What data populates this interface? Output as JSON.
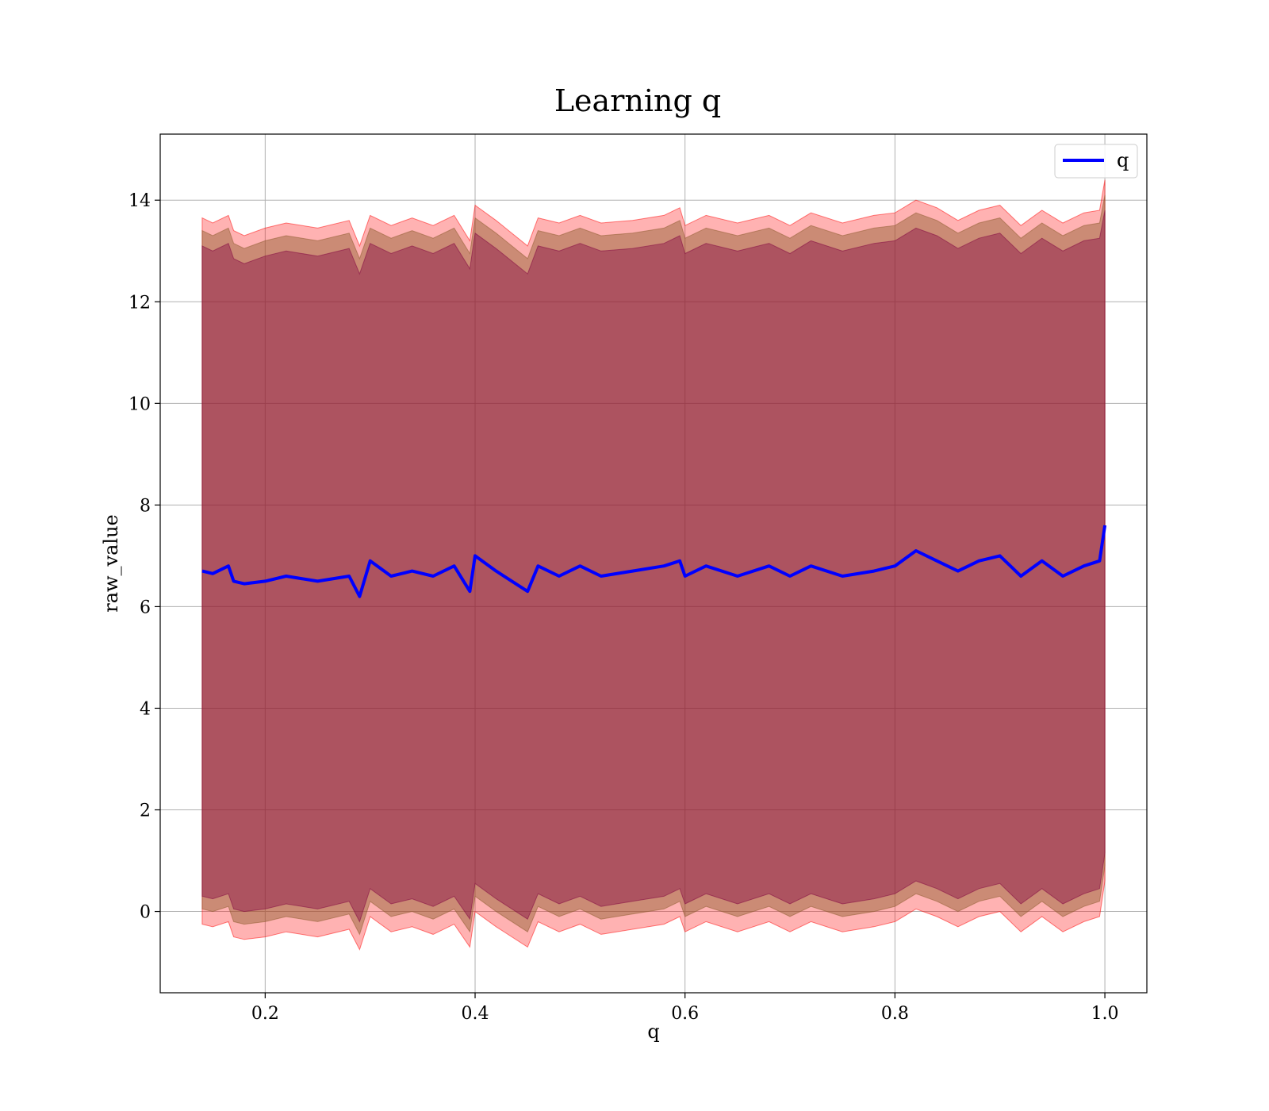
{
  "chart_data": {
    "type": "line",
    "title": "Learning q",
    "xlabel": "q",
    "ylabel": "raw_value",
    "xlim": [
      0.1,
      1.04
    ],
    "ylim": [
      -1.6,
      15.3
    ],
    "xticks": [
      0.2,
      0.4,
      0.6,
      0.8,
      1.0
    ],
    "xtick_labels": [
      "0.2",
      "0.4",
      "0.6",
      "0.8",
      "1.0"
    ],
    "yticks": [
      0,
      2,
      4,
      6,
      8,
      10,
      12,
      14
    ],
    "ytick_labels": [
      "0",
      "2",
      "4",
      "6",
      "8",
      "10",
      "12",
      "14"
    ],
    "grid": true,
    "legend": {
      "position": "top-right",
      "entries": [
        {
          "label": "q",
          "color": "#0000ff"
        }
      ]
    },
    "series": [
      {
        "name": "q",
        "color": "#0000ff",
        "x": [
          0.14,
          0.15,
          0.165,
          0.17,
          0.18,
          0.2,
          0.22,
          0.25,
          0.28,
          0.29,
          0.3,
          0.32,
          0.34,
          0.36,
          0.38,
          0.395,
          0.4,
          0.42,
          0.45,
          0.46,
          0.48,
          0.5,
          0.52,
          0.55,
          0.58,
          0.595,
          0.6,
          0.62,
          0.65,
          0.68,
          0.7,
          0.72,
          0.75,
          0.78,
          0.8,
          0.82,
          0.84,
          0.86,
          0.88,
          0.9,
          0.92,
          0.94,
          0.96,
          0.98,
          0.995,
          1.0
        ],
        "values": [
          6.7,
          6.65,
          6.8,
          6.5,
          6.45,
          6.5,
          6.6,
          6.5,
          6.6,
          6.2,
          6.9,
          6.6,
          6.7,
          6.6,
          6.8,
          6.3,
          7.0,
          6.7,
          6.3,
          6.8,
          6.6,
          6.8,
          6.6,
          6.7,
          6.8,
          6.9,
          6.6,
          6.8,
          6.6,
          6.8,
          6.6,
          6.8,
          6.6,
          6.7,
          6.8,
          7.1,
          6.9,
          6.7,
          6.9,
          7.0,
          6.6,
          6.9,
          6.6,
          6.8,
          6.9,
          7.6
        ]
      }
    ],
    "bands": [
      {
        "name": "outer",
        "color": "#ff0000",
        "opacity": 0.3,
        "upper": [
          13.65,
          13.55,
          13.7,
          13.4,
          13.3,
          13.45,
          13.55,
          13.45,
          13.6,
          13.1,
          13.7,
          13.5,
          13.65,
          13.5,
          13.7,
          13.2,
          13.9,
          13.6,
          13.1,
          13.65,
          13.55,
          13.7,
          13.55,
          13.6,
          13.7,
          13.85,
          13.5,
          13.7,
          13.55,
          13.7,
          13.5,
          13.75,
          13.55,
          13.7,
          13.75,
          14.0,
          13.85,
          13.6,
          13.8,
          13.9,
          13.5,
          13.8,
          13.55,
          13.75,
          13.8,
          14.4
        ],
        "lower": [
          -0.25,
          -0.3,
          -0.2,
          -0.5,
          -0.55,
          -0.5,
          -0.4,
          -0.5,
          -0.35,
          -0.75,
          -0.1,
          -0.4,
          -0.3,
          -0.45,
          -0.25,
          -0.7,
          0.0,
          -0.3,
          -0.7,
          -0.2,
          -0.4,
          -0.25,
          -0.45,
          -0.35,
          -0.25,
          -0.1,
          -0.4,
          -0.2,
          -0.4,
          -0.2,
          -0.4,
          -0.2,
          -0.4,
          -0.3,
          -0.2,
          0.05,
          -0.1,
          -0.3,
          -0.1,
          0.0,
          -0.4,
          -0.1,
          -0.4,
          -0.2,
          -0.1,
          0.6
        ]
      },
      {
        "name": "middle",
        "color": "#8b5a2b",
        "opacity": 0.45,
        "upper": [
          13.4,
          13.3,
          13.45,
          13.15,
          13.05,
          13.2,
          13.3,
          13.2,
          13.35,
          12.85,
          13.45,
          13.25,
          13.4,
          13.25,
          13.45,
          12.95,
          13.65,
          13.35,
          12.85,
          13.4,
          13.3,
          13.45,
          13.3,
          13.35,
          13.45,
          13.6,
          13.25,
          13.45,
          13.3,
          13.45,
          13.25,
          13.5,
          13.3,
          13.45,
          13.5,
          13.75,
          13.6,
          13.35,
          13.55,
          13.65,
          13.25,
          13.55,
          13.3,
          13.5,
          13.55,
          14.1
        ],
        "lower": [
          0.05,
          0.0,
          0.1,
          -0.2,
          -0.25,
          -0.2,
          -0.1,
          -0.2,
          -0.05,
          -0.45,
          0.2,
          -0.1,
          0.0,
          -0.15,
          0.05,
          -0.4,
          0.3,
          0.0,
          -0.4,
          0.1,
          -0.1,
          0.05,
          -0.15,
          -0.05,
          0.05,
          0.2,
          -0.1,
          0.1,
          -0.1,
          0.1,
          -0.1,
          0.1,
          -0.1,
          0.0,
          0.1,
          0.35,
          0.2,
          0.0,
          0.2,
          0.3,
          -0.1,
          0.2,
          -0.1,
          0.1,
          0.2,
          0.9
        ]
      },
      {
        "name": "inner",
        "color": "#800040",
        "opacity": 0.4,
        "upper": [
          13.1,
          13.0,
          13.15,
          12.85,
          12.75,
          12.9,
          13.0,
          12.9,
          13.05,
          12.55,
          13.15,
          12.95,
          13.1,
          12.95,
          13.15,
          12.65,
          13.35,
          13.05,
          12.55,
          13.1,
          13.0,
          13.15,
          13.0,
          13.05,
          13.15,
          13.3,
          12.95,
          13.15,
          13.0,
          13.15,
          12.95,
          13.2,
          13.0,
          13.15,
          13.2,
          13.45,
          13.3,
          13.05,
          13.25,
          13.35,
          12.95,
          13.25,
          13.0,
          13.2,
          13.25,
          13.8
        ],
        "lower": [
          0.3,
          0.25,
          0.35,
          0.05,
          0.0,
          0.05,
          0.15,
          0.05,
          0.2,
          -0.2,
          0.45,
          0.15,
          0.25,
          0.1,
          0.3,
          -0.15,
          0.55,
          0.25,
          -0.15,
          0.35,
          0.15,
          0.3,
          0.1,
          0.2,
          0.3,
          0.45,
          0.15,
          0.35,
          0.15,
          0.35,
          0.15,
          0.35,
          0.15,
          0.25,
          0.35,
          0.6,
          0.45,
          0.25,
          0.45,
          0.55,
          0.15,
          0.45,
          0.15,
          0.35,
          0.45,
          1.15
        ]
      }
    ]
  }
}
